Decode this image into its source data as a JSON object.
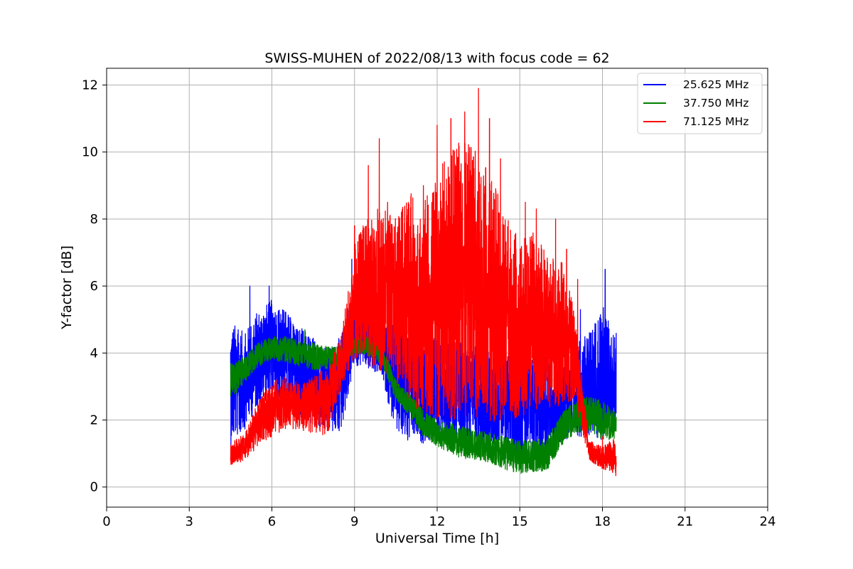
{
  "chart_data": {
    "type": "line",
    "title": "SWISS-MUHEN of 2022/08/13 with focus code = 62",
    "xlabel": "Universal Time [h]",
    "ylabel": "Y-factor [dB]",
    "xlim": [
      0,
      24
    ],
    "ylim": [
      -0.6,
      12.5
    ],
    "xticks": [
      0,
      3,
      6,
      9,
      12,
      15,
      18,
      21,
      24
    ],
    "yticks": [
      0,
      2,
      4,
      6,
      8,
      10,
      12
    ],
    "grid": true,
    "legend_position": "top-right",
    "data_range_hours": [
      4.5,
      18.5
    ],
    "series": [
      {
        "name": "25.625 MHz",
        "color": "#0000ff",
        "envelope": {
          "x": [
            4.5,
            5.0,
            5.5,
            6.0,
            6.5,
            7.0,
            7.5,
            8.0,
            8.5,
            9.0,
            9.5,
            10.0,
            10.5,
            11.0,
            11.5,
            12.0,
            12.5,
            13.0,
            13.5,
            14.0,
            14.5,
            15.0,
            15.5,
            16.0,
            16.5,
            17.0,
            17.5,
            18.0,
            18.5
          ],
          "low": [
            1.2,
            1.7,
            2.4,
            2.7,
            2.5,
            2.1,
            1.8,
            1.6,
            1.6,
            3.6,
            3.5,
            3.3,
            1.5,
            1.3,
            1.3,
            1.4,
            1.4,
            1.3,
            1.2,
            1.2,
            1.1,
            0.8,
            0.9,
            1.0,
            1.3,
            1.5,
            1.5,
            1.4,
            1.9
          ],
          "high": [
            5.0,
            4.6,
            5.3,
            5.6,
            5.3,
            4.8,
            4.5,
            4.1,
            4.5,
            6.2,
            5.5,
            5.0,
            4.8,
            4.6,
            4.5,
            4.5,
            4.4,
            4.3,
            4.2,
            4.1,
            4.0,
            3.9,
            3.9,
            4.0,
            4.2,
            4.4,
            4.6,
            5.5,
            4.4
          ],
          "spikes": [
            [
              5.2,
              6.0
            ],
            [
              5.9,
              6.0
            ],
            [
              8.9,
              6.8
            ],
            [
              17.2,
              5.3
            ],
            [
              18.1,
              6.5
            ],
            [
              18.5,
              4.6
            ]
          ]
        }
      },
      {
        "name": "37.750 MHz",
        "color": "#008000",
        "envelope": {
          "x": [
            4.5,
            5.0,
            5.5,
            6.0,
            6.5,
            7.0,
            7.5,
            8.0,
            8.5,
            9.0,
            9.5,
            10.0,
            10.5,
            11.0,
            11.5,
            12.0,
            12.5,
            13.0,
            13.5,
            14.0,
            14.5,
            15.0,
            15.5,
            16.0,
            16.5,
            17.0,
            17.5,
            18.0,
            18.5
          ],
          "low": [
            2.6,
            3.1,
            3.6,
            3.8,
            3.7,
            3.6,
            3.5,
            3.5,
            3.6,
            4.0,
            3.9,
            3.6,
            2.6,
            2.1,
            1.5,
            1.2,
            1.0,
            0.8,
            0.8,
            0.7,
            0.5,
            0.4,
            0.4,
            0.5,
            1.2,
            1.6,
            1.6,
            1.4,
            1.4
          ],
          "high": [
            3.7,
            3.9,
            4.3,
            4.5,
            4.5,
            4.4,
            4.3,
            4.2,
            4.2,
            4.6,
            4.5,
            4.3,
            3.2,
            2.8,
            2.3,
            2.0,
            1.9,
            1.8,
            1.7,
            1.6,
            1.5,
            1.4,
            1.4,
            1.5,
            2.2,
            2.6,
            2.7,
            2.6,
            2.2
          ],
          "spikes": [
            [
              7.2,
              4.7
            ],
            [
              17.2,
              3.0
            ]
          ]
        }
      },
      {
        "name": "71.125 MHz",
        "color": "#ff0000",
        "envelope": {
          "x": [
            4.5,
            5.0,
            5.5,
            6.0,
            6.5,
            7.0,
            7.5,
            8.0,
            8.5,
            9.0,
            9.5,
            10.0,
            10.5,
            11.0,
            11.5,
            12.0,
            12.5,
            13.0,
            13.5,
            14.0,
            14.5,
            15.0,
            15.5,
            16.0,
            16.5,
            17.0,
            17.5,
            18.0,
            18.5
          ],
          "low": [
            0.6,
            0.8,
            1.2,
            1.5,
            1.7,
            1.7,
            1.6,
            1.5,
            2.8,
            3.8,
            3.6,
            3.4,
            3.0,
            2.5,
            2.2,
            2.0,
            2.0,
            2.1,
            2.0,
            1.9,
            1.9,
            2.1,
            2.3,
            2.3,
            2.4,
            2.6,
            0.8,
            0.5,
            0.3
          ],
          "high": [
            1.3,
            1.6,
            2.6,
            3.2,
            3.3,
            3.1,
            3.3,
            3.6,
            4.5,
            7.2,
            8.2,
            8.4,
            8.0,
            8.8,
            8.5,
            9.5,
            10.0,
            10.5,
            10.0,
            9.2,
            8.2,
            7.5,
            7.6,
            7.0,
            6.8,
            5.3,
            1.4,
            1.2,
            1.5
          ],
          "spikes": [
            [
              9.0,
              7.8
            ],
            [
              9.5,
              9.6
            ],
            [
              9.9,
              10.4
            ],
            [
              10.2,
              8.5
            ],
            [
              11.5,
              9.0
            ],
            [
              12.0,
              10.8
            ],
            [
              12.5,
              11.0
            ],
            [
              13.0,
              11.2
            ],
            [
              13.5,
              11.9
            ],
            [
              13.9,
              11.0
            ],
            [
              14.3,
              9.8
            ],
            [
              15.2,
              8.5
            ],
            [
              15.6,
              8.3
            ],
            [
              16.3,
              8.0
            ],
            [
              16.7,
              7.1
            ],
            [
              17.1,
              6.2
            ],
            [
              18.0,
              1.5
            ]
          ]
        }
      }
    ]
  }
}
